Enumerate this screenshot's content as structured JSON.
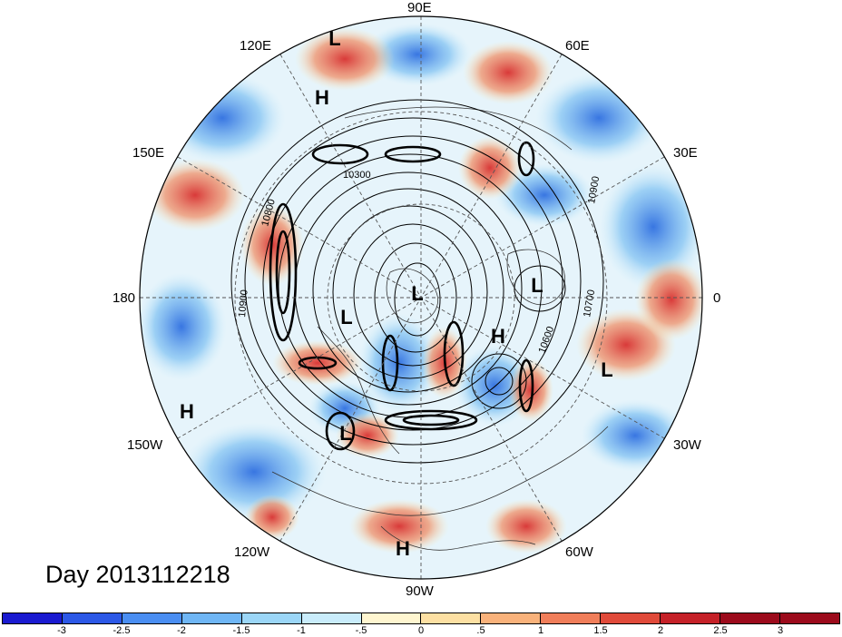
{
  "title": "Day 2013112218",
  "longitude_labels": {
    "n90E": "90E",
    "n60E": "60E",
    "n30E": "30E",
    "n0": "0",
    "n30W": "30W",
    "n60W": "60W",
    "n90W": "90W",
    "n120W": "120W",
    "n150W": "150W",
    "n180": "180",
    "n150E": "150E",
    "n120E": "120E"
  },
  "pressure_centers": [
    {
      "type": "L"
    },
    {
      "type": "H"
    },
    {
      "type": "L"
    },
    {
      "type": "L"
    },
    {
      "type": "L"
    },
    {
      "type": "H"
    },
    {
      "type": "L"
    },
    {
      "type": "H"
    },
    {
      "type": "L"
    },
    {
      "type": "H"
    }
  ],
  "contour_labels": [
    "10300",
    "10800",
    "10900",
    "10900",
    "10700",
    "10600"
  ],
  "colorbar": {
    "colors": [
      "#1a1ad0",
      "#2c58e6",
      "#4a8ef2",
      "#6fb6f5",
      "#9bd6f7",
      "#c9ecfb",
      "#fff6d0",
      "#fde0a3",
      "#f9b27b",
      "#f07e5a",
      "#e04a3a",
      "#c52128",
      "#9c0b1c"
    ],
    "ticks": [
      "-3",
      "-2.5",
      "-2",
      "-1.5",
      "-1",
      "-.5",
      "0",
      ".5",
      "1",
      "1.5",
      "2",
      "2.5",
      "3"
    ]
  },
  "legend_colors": {
    "frame": "#000000",
    "grid": "#555555"
  }
}
